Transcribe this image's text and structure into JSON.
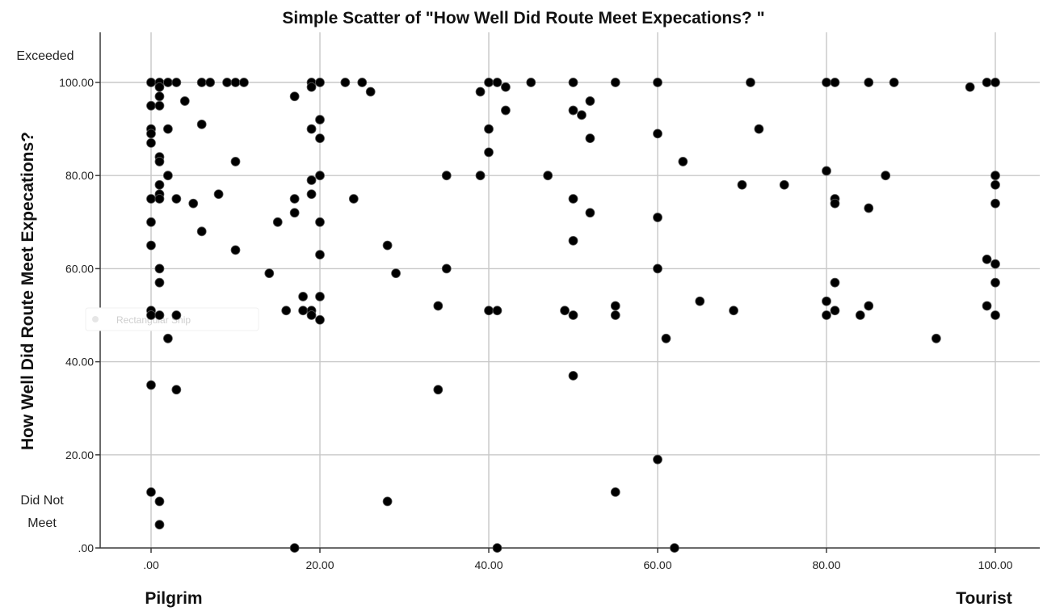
{
  "chart_data": {
    "type": "scatter",
    "title": "Simple Scatter of \"How Well Did Route Meet Expecations? \"",
    "xlabel": "",
    "ylabel": "How Well Did Route Meet Expecations?",
    "xlim": [
      -6,
      105
    ],
    "ylim": [
      0,
      110
    ],
    "x_ticks": [
      ".00",
      "20.00",
      "40.00",
      "60.00",
      "80.00",
      "100.00"
    ],
    "y_ticks": [
      ".00",
      "20.00",
      "40.00",
      "60.00",
      "80.00",
      "100.00"
    ],
    "x_tick_values": [
      0,
      20,
      40,
      60,
      80,
      100
    ],
    "y_tick_values": [
      0,
      20,
      40,
      60,
      80,
      100
    ],
    "grid": true,
    "x_end_labels": {
      "left": "Pilgrim",
      "right": "Tourist"
    },
    "y_end_labels": {
      "top": "Exceeded",
      "bottom_line1": "Did Not",
      "bottom_line2": "Meet"
    },
    "overlay_text": "Rectangular Snip",
    "points": [
      [
        0,
        100
      ],
      [
        0,
        95
      ],
      [
        0,
        90
      ],
      [
        0,
        89
      ],
      [
        0,
        87
      ],
      [
        0,
        75
      ],
      [
        0,
        70
      ],
      [
        0,
        65
      ],
      [
        0,
        51
      ],
      [
        0,
        50
      ],
      [
        0,
        35
      ],
      [
        0,
        12
      ],
      [
        1,
        100
      ],
      [
        1,
        99
      ],
      [
        1,
        97
      ],
      [
        1,
        95
      ],
      [
        1,
        84
      ],
      [
        1,
        83
      ],
      [
        1,
        78
      ],
      [
        1,
        76
      ],
      [
        1,
        75
      ],
      [
        1,
        60
      ],
      [
        1,
        57
      ],
      [
        1,
        50
      ],
      [
        1,
        10
      ],
      [
        1,
        5
      ],
      [
        2,
        100
      ],
      [
        2,
        90
      ],
      [
        2,
        80
      ],
      [
        2,
        45
      ],
      [
        3,
        100
      ],
      [
        3,
        75
      ],
      [
        3,
        50
      ],
      [
        3,
        34
      ],
      [
        4,
        96
      ],
      [
        5,
        74
      ],
      [
        6,
        100
      ],
      [
        6,
        91
      ],
      [
        6,
        68
      ],
      [
        7,
        100
      ],
      [
        8,
        76
      ],
      [
        9,
        100
      ],
      [
        10,
        100
      ],
      [
        10,
        83
      ],
      [
        10,
        64
      ],
      [
        11,
        100
      ],
      [
        14,
        59
      ],
      [
        15,
        70
      ],
      [
        16,
        51
      ],
      [
        17,
        97
      ],
      [
        17,
        75
      ],
      [
        17,
        72
      ],
      [
        17,
        0
      ],
      [
        18,
        54
      ],
      [
        18,
        51
      ],
      [
        19,
        100
      ],
      [
        19,
        99
      ],
      [
        19,
        90
      ],
      [
        19,
        79
      ],
      [
        19,
        76
      ],
      [
        19,
        51
      ],
      [
        19,
        50
      ],
      [
        20,
        100
      ],
      [
        20,
        92
      ],
      [
        20,
        88
      ],
      [
        20,
        80
      ],
      [
        20,
        70
      ],
      [
        20,
        63
      ],
      [
        20,
        54
      ],
      [
        20,
        49
      ],
      [
        23,
        100
      ],
      [
        24,
        75
      ],
      [
        25,
        100
      ],
      [
        26,
        98
      ],
      [
        28,
        65
      ],
      [
        28,
        10
      ],
      [
        29,
        59
      ],
      [
        34,
        52
      ],
      [
        34,
        34
      ],
      [
        35,
        80
      ],
      [
        35,
        60
      ],
      [
        39,
        98
      ],
      [
        39,
        80
      ],
      [
        40,
        100
      ],
      [
        40,
        90
      ],
      [
        40,
        85
      ],
      [
        40,
        51
      ],
      [
        41,
        100
      ],
      [
        41,
        51
      ],
      [
        41,
        0
      ],
      [
        42,
        99
      ],
      [
        42,
        94
      ],
      [
        45,
        100
      ],
      [
        47,
        80
      ],
      [
        49,
        51
      ],
      [
        50,
        100
      ],
      [
        50,
        94
      ],
      [
        50,
        75
      ],
      [
        50,
        66
      ],
      [
        50,
        50
      ],
      [
        50,
        37
      ],
      [
        51,
        93
      ],
      [
        52,
        96
      ],
      [
        52,
        88
      ],
      [
        52,
        72
      ],
      [
        55,
        100
      ],
      [
        55,
        52
      ],
      [
        55,
        50
      ],
      [
        55,
        12
      ],
      [
        60,
        100
      ],
      [
        60,
        89
      ],
      [
        60,
        71
      ],
      [
        60,
        60
      ],
      [
        60,
        19
      ],
      [
        61,
        45
      ],
      [
        62,
        0
      ],
      [
        63,
        83
      ],
      [
        65,
        53
      ],
      [
        69,
        51
      ],
      [
        70,
        78
      ],
      [
        71,
        100
      ],
      [
        72,
        90
      ],
      [
        75,
        78
      ],
      [
        80,
        100
      ],
      [
        80,
        81
      ],
      [
        80,
        53
      ],
      [
        80,
        50
      ],
      [
        81,
        100
      ],
      [
        81,
        75
      ],
      [
        81,
        74
      ],
      [
        81,
        57
      ],
      [
        81,
        51
      ],
      [
        84,
        50
      ],
      [
        85,
        100
      ],
      [
        85,
        73
      ],
      [
        85,
        52
      ],
      [
        87,
        80
      ],
      [
        88,
        100
      ],
      [
        93,
        45
      ],
      [
        97,
        99
      ],
      [
        99,
        100
      ],
      [
        99,
        62
      ],
      [
        99,
        52
      ],
      [
        100,
        100
      ],
      [
        100,
        80
      ],
      [
        100,
        78
      ],
      [
        100,
        74
      ],
      [
        100,
        61
      ],
      [
        100,
        57
      ],
      [
        100,
        50
      ]
    ]
  }
}
